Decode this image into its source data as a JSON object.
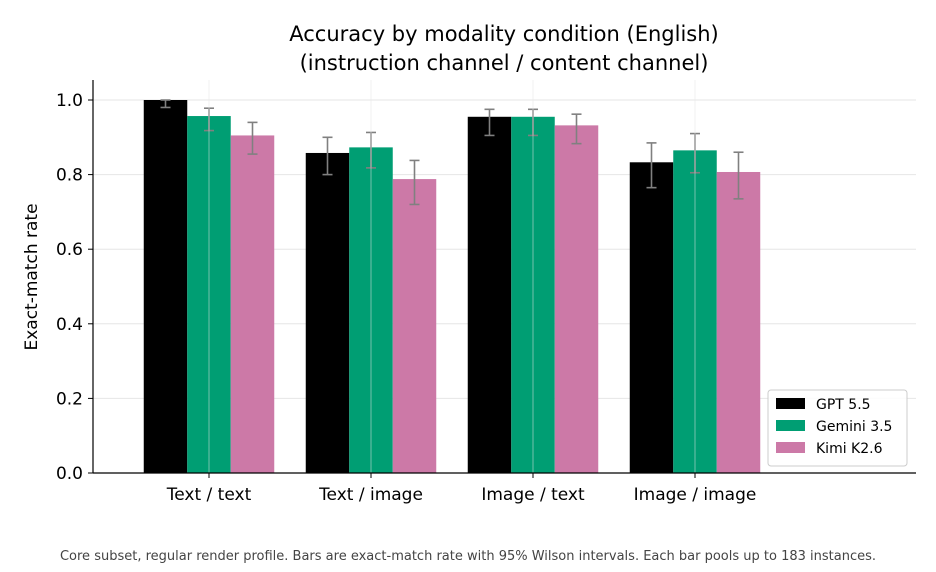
{
  "chart_data": {
    "type": "bar",
    "title": [
      "Accuracy by modality condition (English)",
      "(instruction channel / content channel)"
    ],
    "xlabel": "",
    "ylabel": "Exact-match rate",
    "ylim": [
      0,
      1.05
    ],
    "yticks": [
      "0.0",
      "0.2",
      "0.4",
      "0.6",
      "0.8",
      "1.0"
    ],
    "categories": [
      "Text / text",
      "Text / image",
      "Image / text",
      "Image / image"
    ],
    "series": [
      {
        "name": "GPT 5.5",
        "color": "#000000",
        "values": [
          1.0,
          0.858,
          0.955,
          0.833
        ],
        "ci_low": [
          0.98,
          0.8,
          0.905,
          0.765
        ],
        "ci_high": [
          1.0,
          0.9,
          0.975,
          0.885
        ]
      },
      {
        "name": "Gemini 3.5",
        "color": "#009E73",
        "values": [
          0.957,
          0.873,
          0.955,
          0.865
        ],
        "ci_low": [
          0.918,
          0.818,
          0.905,
          0.805
        ],
        "ci_high": [
          0.978,
          0.913,
          0.975,
          0.91
        ]
      },
      {
        "name": "Kimi K2.6",
        "color": "#CC79A7",
        "values": [
          0.905,
          0.788,
          0.932,
          0.807
        ],
        "ci_low": [
          0.855,
          0.72,
          0.883,
          0.735
        ],
        "ci_high": [
          0.94,
          0.838,
          0.962,
          0.86
        ]
      }
    ],
    "error_bar_color": "#808080",
    "grid": true,
    "legend_position": "bottom-right",
    "caption": "Core subset, regular render profile. Bars are exact-match rate with 95% Wilson intervals. Each bar pools up to 183 instances."
  }
}
